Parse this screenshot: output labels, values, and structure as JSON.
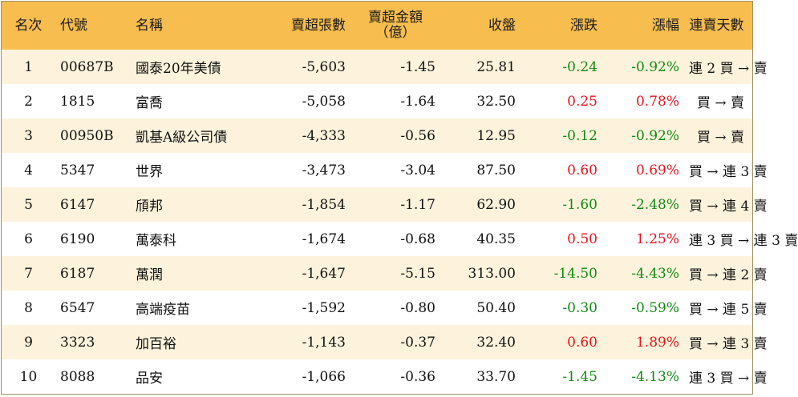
{
  "headers": {
    "rank": "名次",
    "code": "代號",
    "name": "名稱",
    "lots": "賣超張數",
    "amount_line1": "賣超金額",
    "amount_line2": "（億）",
    "close": "收盤",
    "change": "漲跌",
    "pct": "漲幅",
    "days": "連賣天數"
  },
  "rows": [
    {
      "rank": "1",
      "code": "00687B",
      "name": "國泰20年美債",
      "lots": "-5,603",
      "amount": "-1.45",
      "close": "25.81",
      "change": "-0.24",
      "pct": "-0.92%",
      "days": "連 2 買 → 賣",
      "dir": "down"
    },
    {
      "rank": "2",
      "code": "1815",
      "name": "富喬",
      "lots": "-5,058",
      "amount": "-1.64",
      "close": "32.50",
      "change": "0.25",
      "pct": "0.78%",
      "days": "買 → 賣",
      "dir": "up"
    },
    {
      "rank": "3",
      "code": "00950B",
      "name": "凱基A級公司債",
      "lots": "-4,333",
      "amount": "-0.56",
      "close": "12.95",
      "change": "-0.12",
      "pct": "-0.92%",
      "days": "買 → 賣",
      "dir": "down"
    },
    {
      "rank": "4",
      "code": "5347",
      "name": "世界",
      "lots": "-3,473",
      "amount": "-3.04",
      "close": "87.50",
      "change": "0.60",
      "pct": "0.69%",
      "days": "買 → 連 3 賣",
      "dir": "up"
    },
    {
      "rank": "5",
      "code": "6147",
      "name": "頎邦",
      "lots": "-1,854",
      "amount": "-1.17",
      "close": "62.90",
      "change": "-1.60",
      "pct": "-2.48%",
      "days": "買 → 連 4 賣",
      "dir": "down"
    },
    {
      "rank": "6",
      "code": "6190",
      "name": "萬泰科",
      "lots": "-1,674",
      "amount": "-0.68",
      "close": "40.35",
      "change": "0.50",
      "pct": "1.25%",
      "days": "連 3 買 → 連 3 賣",
      "dir": "up"
    },
    {
      "rank": "7",
      "code": "6187",
      "name": "萬潤",
      "lots": "-1,647",
      "amount": "-5.15",
      "close": "313.00",
      "change": "-14.50",
      "pct": "-4.43%",
      "days": "買 → 連 2 賣",
      "dir": "down"
    },
    {
      "rank": "8",
      "code": "6547",
      "name": "高端疫苗",
      "lots": "-1,592",
      "amount": "-0.80",
      "close": "50.40",
      "change": "-0.30",
      "pct": "-0.59%",
      "days": "買 → 連 5 賣",
      "dir": "down"
    },
    {
      "rank": "9",
      "code": "3323",
      "name": "加百裕",
      "lots": "-1,143",
      "amount": "-0.37",
      "close": "32.40",
      "change": "0.60",
      "pct": "1.89%",
      "days": "買 → 連 3 賣",
      "dir": "up"
    },
    {
      "rank": "10",
      "code": "8088",
      "name": "品安",
      "lots": "-1,066",
      "amount": "-0.36",
      "close": "33.70",
      "change": "-1.45",
      "pct": "-4.13%",
      "days": "連 3 買 → 賣",
      "dir": "down"
    }
  ],
  "colors": {
    "header_bg": "#f7bd4f",
    "odd_row_bg": "#fdf3dc",
    "up": "#e8131e",
    "down": "#128a12"
  }
}
